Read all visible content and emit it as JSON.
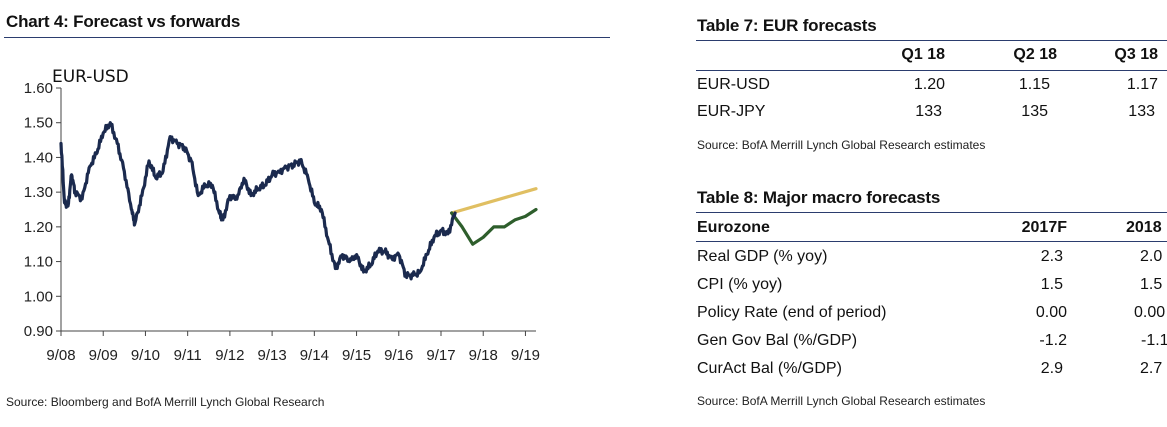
{
  "chart": {
    "title": "Chart 4: Forecast vs forwards",
    "source": "Source: Bloomberg and BofA Merrill Lynch Global Research"
  },
  "table7": {
    "title": "Table 7: EUR forecasts",
    "columns": [
      "Q1 18",
      "Q2 18",
      "Q3 18"
    ],
    "rows": [
      {
        "label": "EUR-USD",
        "values": [
          "1.20",
          "1.15",
          "1.17"
        ]
      },
      {
        "label": "EUR-JPY",
        "values": [
          "133",
          "135",
          "133"
        ]
      }
    ],
    "source": "Source: BofA Merrill Lynch Global Research estimates"
  },
  "table8": {
    "title": "Table 8: Major macro forecasts",
    "header_label": "Eurozone",
    "columns": [
      "2017F",
      "2018"
    ],
    "rows": [
      {
        "label": "Real GDP (% yoy)",
        "values": [
          "2.3",
          "2.0"
        ]
      },
      {
        "label": "CPI (% yoy)",
        "values": [
          "1.5",
          "1.5"
        ]
      },
      {
        "label": "Policy Rate (end of period)",
        "values": [
          "0.00",
          "0.00"
        ]
      },
      {
        "label": "Gen Gov Bal (%/GDP)",
        "values": [
          "-1.2",
          "-1.1"
        ]
      },
      {
        "label": "CurAct Bal (%/GDP)",
        "values": [
          "2.9",
          "2.7"
        ]
      }
    ],
    "source": "Source: BofA Merrill Lynch Global Research estimates"
  },
  "chart_data": {
    "type": "line",
    "title": "Chart 4: Forecast vs forwards",
    "ylabel": "EUR-USD",
    "xlabel": "",
    "ylim": [
      0.9,
      1.6
    ],
    "yticks": [
      "0.90",
      "1.00",
      "1.10",
      "1.20",
      "1.30",
      "1.40",
      "1.50",
      "1.60"
    ],
    "xlim": [
      "2008-09",
      "2019-12"
    ],
    "xticks": [
      "9/08",
      "9/09",
      "9/10",
      "9/11",
      "9/12",
      "9/13",
      "9/14",
      "9/15",
      "9/16",
      "9/17",
      "9/18",
      "9/19"
    ],
    "grid": false,
    "colors": {
      "spot": "#1b2a4e",
      "forwards": "#e0bf62",
      "forecast": "#2e5e2c"
    },
    "series": [
      {
        "key": "spot",
        "x": [
          "2008-09",
          "2008-10",
          "2008-11",
          "2008-12",
          "2009-01",
          "2009-03",
          "2009-05",
          "2009-07",
          "2009-09",
          "2009-11",
          "2010-01",
          "2010-03",
          "2010-05",
          "2010-06",
          "2010-08",
          "2010-10",
          "2010-12",
          "2011-02",
          "2011-04",
          "2011-06",
          "2011-08",
          "2011-10",
          "2011-12",
          "2012-02",
          "2012-04",
          "2012-06",
          "2012-07",
          "2012-09",
          "2012-11",
          "2013-01",
          "2013-03",
          "2013-05",
          "2013-07",
          "2013-09",
          "2013-11",
          "2014-01",
          "2014-03",
          "2014-05",
          "2014-07",
          "2014-09",
          "2014-11",
          "2015-01",
          "2015-03",
          "2015-05",
          "2015-07",
          "2015-09",
          "2015-11",
          "2016-01",
          "2016-03",
          "2016-05",
          "2016-07",
          "2016-09",
          "2016-11",
          "2017-01",
          "2017-03",
          "2017-05",
          "2017-07",
          "2017-09",
          "2017-11",
          "2018-01"
        ],
        "values": [
          1.44,
          1.27,
          1.26,
          1.35,
          1.3,
          1.28,
          1.37,
          1.41,
          1.47,
          1.5,
          1.44,
          1.36,
          1.25,
          1.21,
          1.29,
          1.39,
          1.34,
          1.36,
          1.46,
          1.44,
          1.43,
          1.39,
          1.29,
          1.32,
          1.32,
          1.24,
          1.22,
          1.29,
          1.28,
          1.34,
          1.29,
          1.31,
          1.32,
          1.35,
          1.36,
          1.37,
          1.38,
          1.39,
          1.35,
          1.27,
          1.25,
          1.16,
          1.08,
          1.12,
          1.1,
          1.12,
          1.07,
          1.09,
          1.13,
          1.13,
          1.11,
          1.12,
          1.06,
          1.06,
          1.07,
          1.12,
          1.17,
          1.19,
          1.18,
          1.24
        ]
      },
      {
        "key": "forwards",
        "x": [
          "2017-12",
          "2019-12"
        ],
        "values": [
          1.24,
          1.31
        ]
      },
      {
        "key": "forecast",
        "x": [
          "2017-12",
          "2018-03",
          "2018-06",
          "2018-09",
          "2018-12",
          "2019-03",
          "2019-06",
          "2019-09",
          "2019-12"
        ],
        "values": [
          1.24,
          1.2,
          1.15,
          1.17,
          1.2,
          1.2,
          1.22,
          1.23,
          1.25
        ]
      }
    ]
  }
}
